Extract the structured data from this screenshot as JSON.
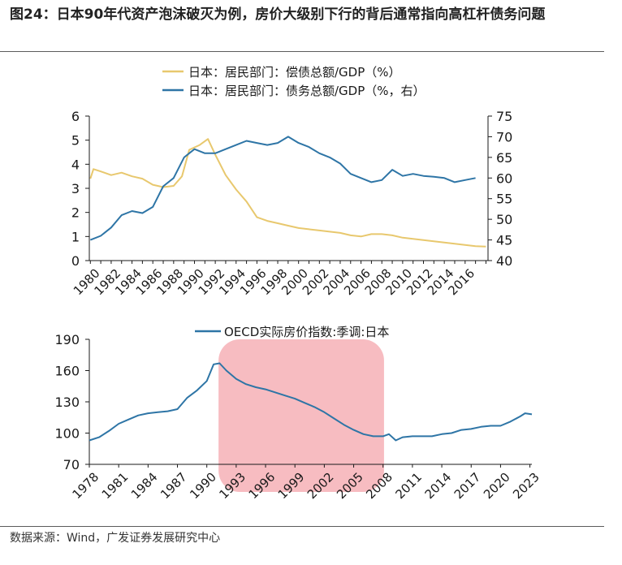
{
  "figure": {
    "title": "图24：日本90年代资产泡沫破灭为例，房价大级别下行的背后通常指向高杠杆债务问题",
    "source": "数据来源：Wind，广发证券发展研究中心"
  },
  "colors": {
    "gold": "#E8C86E",
    "blue": "#2E75A6",
    "highlight": "#F4A6AC"
  },
  "chart_data": [
    {
      "type": "line",
      "legend_position": "top",
      "grid": false,
      "x_ticks": [
        "1980",
        "1982",
        "1984",
        "1986",
        "1988",
        "1990",
        "1992",
        "1994",
        "1996",
        "1998",
        "2000",
        "2002",
        "2004",
        "2006",
        "2008",
        "2010",
        "2012",
        "2014",
        "2016"
      ],
      "xlim": [
        1979.9,
        2018.2
      ],
      "ylim_left": [
        0,
        6
      ],
      "yticks_left": [
        "0",
        "1",
        "2",
        "3",
        "4",
        "5",
        "6"
      ],
      "ylim_right": [
        40,
        75
      ],
      "yticks_right": [
        "40",
        "45",
        "50",
        "55",
        "60",
        "65",
        "70",
        "75"
      ],
      "series": [
        {
          "name": "日本：居民部门：偿债总额/GDP（%）",
          "axis": "left",
          "color": "#E8C86E",
          "points": [
            [
              1980,
              3.4
            ],
            [
              1980.3,
              3.8
            ],
            [
              1981,
              3.7
            ],
            [
              1982,
              3.55
            ],
            [
              1983,
              3.65
            ],
            [
              1984,
              3.5
            ],
            [
              1985,
              3.4
            ],
            [
              1986,
              3.15
            ],
            [
              1987,
              3.05
            ],
            [
              1988,
              3.1
            ],
            [
              1988.8,
              3.5
            ],
            [
              1989.5,
              4.6
            ],
            [
              1990.5,
              4.8
            ],
            [
              1991.3,
              5.05
            ],
            [
              1992,
              4.4
            ],
            [
              1993,
              3.55
            ],
            [
              1994,
              2.95
            ],
            [
              1995,
              2.45
            ],
            [
              1996,
              1.8
            ],
            [
              1997,
              1.65
            ],
            [
              1998,
              1.55
            ],
            [
              1999,
              1.45
            ],
            [
              2000,
              1.35
            ],
            [
              2001,
              1.3
            ],
            [
              2002,
              1.25
            ],
            [
              2003,
              1.2
            ],
            [
              2004,
              1.15
            ],
            [
              2005,
              1.05
            ],
            [
              2006,
              1.0
            ],
            [
              2007,
              1.1
            ],
            [
              2008,
              1.1
            ],
            [
              2009,
              1.05
            ],
            [
              2010,
              0.95
            ],
            [
              2011,
              0.9
            ],
            [
              2012,
              0.85
            ],
            [
              2013,
              0.8
            ],
            [
              2014,
              0.75
            ],
            [
              2015,
              0.7
            ],
            [
              2016,
              0.65
            ],
            [
              2017,
              0.6
            ],
            [
              2018,
              0.58
            ]
          ]
        },
        {
          "name": "日本：居民部门：债务总额/GDP（%，右）",
          "axis": "right",
          "color": "#2E75A6",
          "points": [
            [
              1980,
              45
            ],
            [
              1981,
              46
            ],
            [
              1982,
              48
            ],
            [
              1983,
              51
            ],
            [
              1984,
              52
            ],
            [
              1985,
              51.5
            ],
            [
              1986,
              53
            ],
            [
              1987,
              58
            ],
            [
              1988,
              60
            ],
            [
              1989,
              65
            ],
            [
              1990,
              67
            ],
            [
              1991,
              66
            ],
            [
              1992,
              66
            ],
            [
              1993,
              67
            ],
            [
              1994,
              68
            ],
            [
              1995,
              69
            ],
            [
              1996,
              68.5
            ],
            [
              1997,
              68
            ],
            [
              1998,
              68.5
            ],
            [
              1999,
              70
            ],
            [
              2000,
              68.5
            ],
            [
              2001,
              67.5
            ],
            [
              2002,
              66
            ],
            [
              2003,
              65
            ],
            [
              2004,
              63.5
            ],
            [
              2005,
              61
            ],
            [
              2006,
              60
            ],
            [
              2007,
              59
            ],
            [
              2008,
              59.5
            ],
            [
              2009,
              62
            ],
            [
              2010,
              60.5
            ],
            [
              2011,
              61
            ],
            [
              2012,
              60.5
            ],
            [
              2013,
              60.3
            ],
            [
              2014,
              60
            ],
            [
              2015,
              59
            ],
            [
              2016,
              59.5
            ],
            [
              2017,
              60
            ]
          ]
        }
      ]
    },
    {
      "type": "line",
      "legend_position": "top",
      "grid": false,
      "x_ticks": [
        "1978",
        "1981",
        "1984",
        "1987",
        "1990",
        "1993",
        "1996",
        "1999",
        "2002",
        "2005",
        "2008",
        "2011",
        "2014",
        "2017",
        "2020",
        "2023"
      ],
      "xlim": [
        1978,
        2023.2
      ],
      "ylim": [
        70,
        190
      ],
      "yticks": [
        "70",
        "100",
        "130",
        "160",
        "190"
      ],
      "highlight_range": [
        1991.2,
        2008.1
      ],
      "series": [
        {
          "name": "OECD实际房价指数:季调:日本",
          "color": "#2E75A6",
          "points": [
            [
              1978,
              93
            ],
            [
              1979,
              96
            ],
            [
              1980,
              102
            ],
            [
              1981,
              109
            ],
            [
              1982,
              113
            ],
            [
              1983,
              117
            ],
            [
              1984,
              119
            ],
            [
              1985,
              120
            ],
            [
              1986,
              121
            ],
            [
              1987,
              123
            ],
            [
              1988,
              134
            ],
            [
              1989,
              141
            ],
            [
              1990,
              150
            ],
            [
              1990.7,
              166
            ],
            [
              1991.3,
              167
            ],
            [
              1992,
              160
            ],
            [
              1993,
              152
            ],
            [
              1994,
              147
            ],
            [
              1995,
              144
            ],
            [
              1996,
              142
            ],
            [
              1997,
              139
            ],
            [
              1998,
              136
            ],
            [
              1999,
              133
            ],
            [
              2000,
              129
            ],
            [
              2001,
              125
            ],
            [
              2002,
              120
            ],
            [
              2003,
              114
            ],
            [
              2004,
              108
            ],
            [
              2005,
              103
            ],
            [
              2006,
              99
            ],
            [
              2007,
              97
            ],
            [
              2008,
              97
            ],
            [
              2008.6,
              99
            ],
            [
              2009.3,
              93
            ],
            [
              2010,
              96
            ],
            [
              2011,
              97
            ],
            [
              2012,
              97
            ],
            [
              2013,
              97
            ],
            [
              2014,
              99
            ],
            [
              2015,
              100
            ],
            [
              2016,
              103
            ],
            [
              2017,
              104
            ],
            [
              2018,
              106
            ],
            [
              2019,
              107
            ],
            [
              2020,
              107
            ],
            [
              2021,
              111
            ],
            [
              2022,
              116
            ],
            [
              2022.5,
              119
            ],
            [
              2023.2,
              118
            ]
          ]
        }
      ]
    }
  ]
}
